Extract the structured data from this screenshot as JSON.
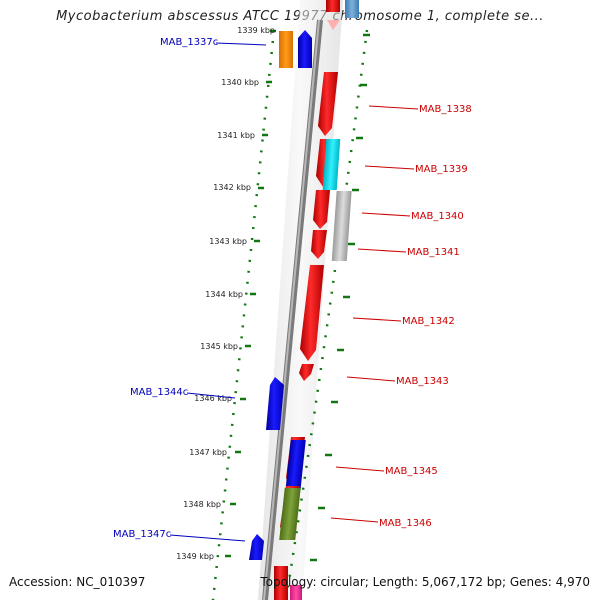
{
  "title": "Mycobacterium abscessus ATCC 19977 chromosome 1, complete se...",
  "footer": {
    "accession": "Accession: NC_010397",
    "summary": "Topology: circular; Length: 5,067,172 bp; Genes: 4,970"
  },
  "colors": {
    "forward_label": "#cc0000",
    "reverse_label": "#0000bb",
    "backbone": "#888888",
    "scale_marks": "#117711"
  },
  "scale_ticks": [
    {
      "label": "1339 kbp",
      "kbp": 1339
    },
    {
      "label": "1340 kbp",
      "kbp": 1340
    },
    {
      "label": "1341 kbp",
      "kbp": 1341
    },
    {
      "label": "1342 kbp",
      "kbp": 1342
    },
    {
      "label": "1343 kbp",
      "kbp": 1343
    },
    {
      "label": "1344 kbp",
      "kbp": 1344
    },
    {
      "label": "1345 kbp",
      "kbp": 1345
    },
    {
      "label": "1346 kbp",
      "kbp": 1346
    },
    {
      "label": "1347 kbp",
      "kbp": 1347
    },
    {
      "label": "1348 kbp",
      "kbp": 1348
    },
    {
      "label": "1349 kbp",
      "kbp": 1349
    }
  ],
  "gene_labels": [
    {
      "label": "MAB_1337c",
      "strand": "reverse"
    },
    {
      "label": "MAB_1338",
      "strand": "forward"
    },
    {
      "label": "MAB_1339",
      "strand": "forward"
    },
    {
      "label": "MAB_1340",
      "strand": "forward"
    },
    {
      "label": "MAB_1341",
      "strand": "forward"
    },
    {
      "label": "MAB_1342",
      "strand": "forward"
    },
    {
      "label": "MAB_1343",
      "strand": "forward"
    },
    {
      "label": "MAB_1344c",
      "strand": "reverse"
    },
    {
      "label": "MAB_1345",
      "strand": "forward"
    },
    {
      "label": "MAB_1346",
      "strand": "forward"
    },
    {
      "label": "MAB_1347c",
      "strand": "reverse"
    }
  ]
}
